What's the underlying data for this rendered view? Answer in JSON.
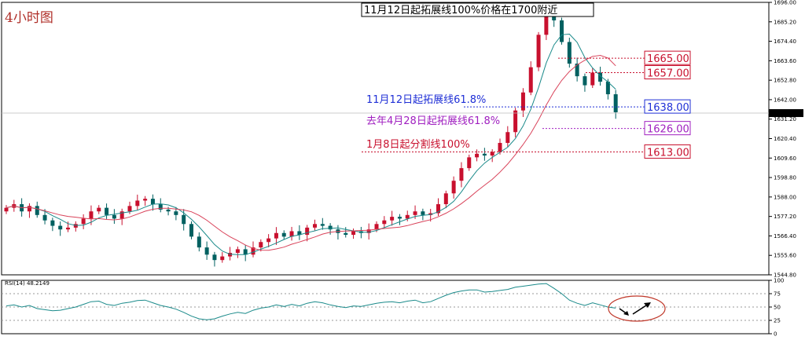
{
  "timeframe_label": "4小时图",
  "colors": {
    "up": "#c8102e",
    "down": "#006060",
    "ma_fast": "#1a8a8a",
    "ma_slow": "#d9435a",
    "blue": "#1f2fd6",
    "purple": "#a020c0",
    "red": "#c8102e",
    "rsi": "#1a8a8a"
  },
  "chart_data": [
    {
      "type": "candlestick",
      "ylim": [
        1544.8,
        1696.0
      ],
      "y_ticks": [
        "1696.00",
        "1685.20",
        "1674.40",
        "1663.60",
        "1652.80",
        "1642.00",
        "1631.20",
        "1620.40",
        "1609.60",
        "1598.80",
        "1588.00",
        "1577.20",
        "1566.40",
        "1555.60",
        "1544.80"
      ],
      "current_price": "1634.55",
      "closes": [
        1582,
        1584,
        1580,
        1583,
        1578,
        1575,
        1572,
        1570,
        1571,
        1573,
        1576,
        1580,
        1582,
        1578,
        1576,
        1580,
        1583,
        1586,
        1587,
        1584,
        1581,
        1580,
        1578,
        1573,
        1566,
        1560,
        1556,
        1553,
        1555,
        1557,
        1559,
        1556,
        1560,
        1563,
        1565,
        1568,
        1566,
        1569,
        1567,
        1571,
        1573,
        1572,
        1570,
        1568,
        1567,
        1569,
        1568,
        1570,
        1573,
        1575,
        1577,
        1576,
        1578,
        1580,
        1578,
        1579,
        1584,
        1590,
        1597,
        1604,
        1610,
        1612,
        1611,
        1613,
        1618,
        1624,
        1636,
        1646,
        1660,
        1678,
        1692,
        1686,
        1674,
        1662,
        1655,
        1650,
        1657,
        1652,
        1645,
        1635
      ],
      "annotations": [
        {
          "text": "11月12日起拓展线100%价格在1700附近",
          "box_color": "blue"
        },
        {
          "text": "11月12日起拓展线61.8%",
          "level": 1638.0,
          "label": "1638.00",
          "color": "blue"
        },
        {
          "text": "去年4月28日起拓展线61.8%",
          "level": 1626.0,
          "label": "1626.00",
          "color": "purple"
        },
        {
          "text": "1月8日起分割线100%",
          "level": 1613.0,
          "label": "1613.00",
          "color": "red"
        },
        {
          "level": 1665.0,
          "label": "1665.00",
          "color": "red"
        },
        {
          "level": 1657.0,
          "label": "1657.00",
          "color": "red"
        }
      ]
    },
    {
      "type": "line",
      "title": "RSI(14) 48.2149",
      "ylim": [
        0,
        100
      ],
      "y_ticks": [
        "100",
        "75",
        "50",
        "25",
        "0"
      ],
      "levels": [
        75,
        50,
        25
      ],
      "values": [
        52,
        54,
        50,
        53,
        47,
        45,
        43,
        44,
        47,
        50,
        55,
        60,
        61,
        55,
        53,
        57,
        59,
        62,
        63,
        58,
        53,
        50,
        46,
        40,
        33,
        28,
        26,
        28,
        33,
        37,
        40,
        38,
        44,
        48,
        50,
        54,
        51,
        55,
        52,
        57,
        60,
        58,
        54,
        51,
        49,
        52,
        51,
        54,
        57,
        59,
        60,
        58,
        61,
        63,
        58,
        60,
        66,
        72,
        77,
        80,
        82,
        82,
        78,
        79,
        81,
        83,
        87,
        89,
        91,
        93,
        94,
        85,
        75,
        63,
        57,
        53,
        58,
        54,
        50,
        48
      ]
    }
  ]
}
